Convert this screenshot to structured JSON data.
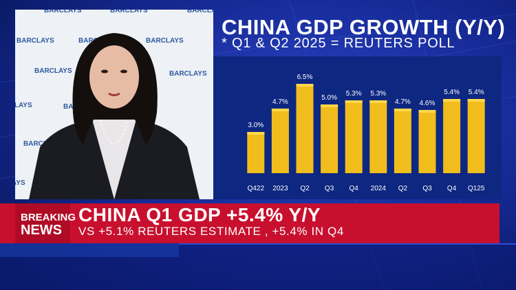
{
  "headline": "CHINA GDP GROWTH (Y/Y)",
  "subtitle": "* Q1 & Q2 2025 = REUTERS POLL",
  "breaking": {
    "line1": "BREAKING",
    "line2": "NEWS",
    "headline": "CHINA Q1 GDP +5.4% Y/Y",
    "subheadline": "VS +5.1% REUTERS ESTIMATE , +5.4% IN Q4"
  },
  "backdrop": {
    "logo_text": "BARCLAYS"
  },
  "colors": {
    "bar": "#f0bd1c",
    "bar_shade": "#b38a0e",
    "panel": "#0e2781",
    "breaking_red": "#c8102e"
  },
  "chart_data": {
    "type": "bar",
    "title": "CHINA GDP GROWTH (Y/Y)",
    "subtitle": "* Q1 & Q2 2025 = REUTERS POLL",
    "categories": [
      "Q422",
      "2023",
      "Q2",
      "Q3",
      "Q4",
      "2024",
      "Q2",
      "Q3",
      "Q4",
      "Q125"
    ],
    "values": [
      3.0,
      4.7,
      6.5,
      5.0,
      5.3,
      5.3,
      4.7,
      4.6,
      5.4,
      5.4
    ],
    "data_labels": [
      "3.0%",
      "4.7%",
      "6.5%",
      "5.0%",
      "5.3%",
      "5.3%",
      "4.7%",
      "4.6%",
      "5.4%",
      "5.4%"
    ],
    "xlabel": "",
    "ylabel": "",
    "ylim": [
      0,
      7
    ],
    "grid": false,
    "legend": "none"
  }
}
